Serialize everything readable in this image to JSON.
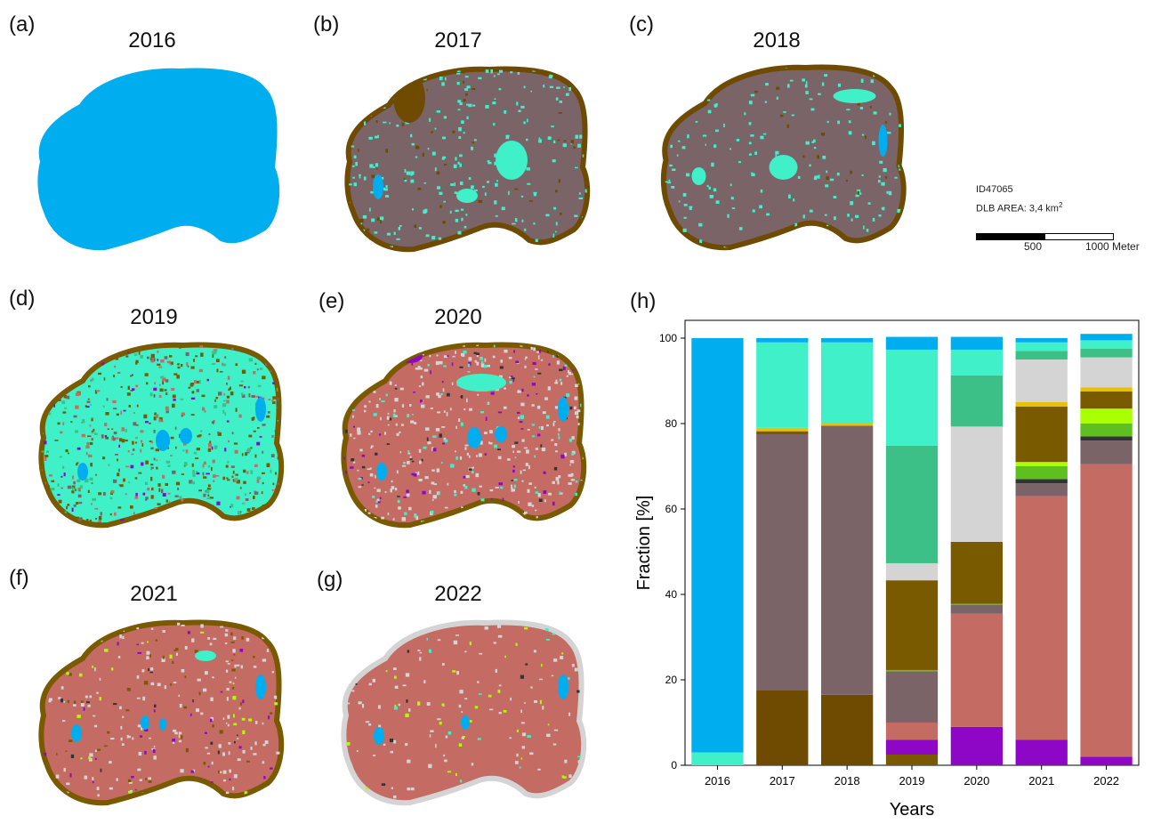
{
  "panels": [
    {
      "letter": "(a)",
      "year": "2016"
    },
    {
      "letter": "(b)",
      "year": "2017"
    },
    {
      "letter": "(c)",
      "year": "2018"
    },
    {
      "letter": "(d)",
      "year": "2019"
    },
    {
      "letter": "(e)",
      "year": "2020"
    },
    {
      "letter": "(f)",
      "year": "2021"
    },
    {
      "letter": "(g)",
      "year": "2022"
    },
    {
      "letter": "(h)",
      "year": ""
    }
  ],
  "info": {
    "id": "ID47065",
    "area_label": "DLB AREA:",
    "area_value": "3,4 km",
    "area_sup": "2",
    "scale_mid": "500",
    "scale_end": "1000 Meter"
  },
  "colors": {
    "water": "#00aeef",
    "aqua": "#3ff0c8",
    "green_teal": "#3dbf88",
    "light_gray": "#d4d4d4",
    "olive": "#7a5a00",
    "brown": "#6e4b00",
    "mauve": "#7b6468",
    "salmon": "#c46b63",
    "purple": "#8e06c6",
    "yellow": "#e8c200",
    "lime": "#aaff00",
    "green": "#5fbf1f",
    "dark": "#333333"
  },
  "chart_data": {
    "type": "bar",
    "stacked": true,
    "categories": [
      "2016",
      "2017",
      "2018",
      "2019",
      "2020",
      "2021",
      "2022"
    ],
    "xlabel": "Years",
    "ylabel": "Fraction [%]",
    "ylim": [
      0,
      100
    ],
    "yticks": [
      0,
      20,
      40,
      60,
      80,
      100
    ],
    "grid": false,
    "segments": [
      [
        {
          "color": "#3ff0c8",
          "value": 3
        },
        {
          "color": "#00aeef",
          "value": 97
        }
      ],
      [
        {
          "color": "#6e4b00",
          "value": 17.5
        },
        {
          "color": "#7b6468",
          "value": 60
        },
        {
          "color": "#7a5a00",
          "value": 0.7
        },
        {
          "color": "#e8c200",
          "value": 0.8
        },
        {
          "color": "#3ff0c8",
          "value": 20
        },
        {
          "color": "#00aeef",
          "value": 1
        }
      ],
      [
        {
          "color": "#6e4b00",
          "value": 16.5
        },
        {
          "color": "#7b6468",
          "value": 63
        },
        {
          "color": "#e8c200",
          "value": 0.5
        },
        {
          "color": "#3ff0c8",
          "value": 19
        },
        {
          "color": "#00aeef",
          "value": 1
        }
      ],
      [
        {
          "color": "#7a5a00",
          "value": 2.5
        },
        {
          "color": "#8e06c6",
          "value": 3.5
        },
        {
          "color": "#c46b63",
          "value": 4
        },
        {
          "color": "#7b6468",
          "value": 12
        },
        {
          "color": "#5fbf1f",
          "value": 0.3
        },
        {
          "color": "#7a5a00",
          "value": 21
        },
        {
          "color": "#d4d4d4",
          "value": 4
        },
        {
          "color": "#3dbf88",
          "value": 27.5
        },
        {
          "color": "#3ff0c8",
          "value": 22.5
        },
        {
          "color": "#00aeef",
          "value": 3
        }
      ],
      [
        {
          "color": "#8e06c6",
          "value": 9
        },
        {
          "color": "#c46b63",
          "value": 26.5
        },
        {
          "color": "#7b6468",
          "value": 2
        },
        {
          "color": "#5fbf1f",
          "value": 0.3
        },
        {
          "color": "#7a5a00",
          "value": 14.5
        },
        {
          "color": "#d4d4d4",
          "value": 27
        },
        {
          "color": "#3dbf88",
          "value": 12
        },
        {
          "color": "#3ff0c8",
          "value": 6
        },
        {
          "color": "#00aeef",
          "value": 3
        }
      ],
      [
        {
          "color": "#8e06c6",
          "value": 6
        },
        {
          "color": "#c46b63",
          "value": 57
        },
        {
          "color": "#7b6468",
          "value": 3
        },
        {
          "color": "#333333",
          "value": 1
        },
        {
          "color": "#5fbf1f",
          "value": 3
        },
        {
          "color": "#aaff00",
          "value": 1
        },
        {
          "color": "#7a5a00",
          "value": 13
        },
        {
          "color": "#e8c200",
          "value": 1
        },
        {
          "color": "#d4d4d4",
          "value": 10
        },
        {
          "color": "#3dbf88",
          "value": 2
        },
        {
          "color": "#3ff0c8",
          "value": 2
        },
        {
          "color": "#00aeef",
          "value": 1
        }
      ],
      [
        {
          "color": "#8e06c6",
          "value": 2
        },
        {
          "color": "#c46b63",
          "value": 68.5
        },
        {
          "color": "#7b6468",
          "value": 5.5
        },
        {
          "color": "#333333",
          "value": 1
        },
        {
          "color": "#5fbf1f",
          "value": 3
        },
        {
          "color": "#aaff00",
          "value": 3.5
        },
        {
          "color": "#7a5a00",
          "value": 4
        },
        {
          "color": "#e8c200",
          "value": 1
        },
        {
          "color": "#d4d4d4",
          "value": 7
        },
        {
          "color": "#3dbf88",
          "value": 2
        },
        {
          "color": "#3ff0c8",
          "value": 2
        },
        {
          "color": "#00aeef",
          "value": 1.5
        }
      ]
    ]
  }
}
